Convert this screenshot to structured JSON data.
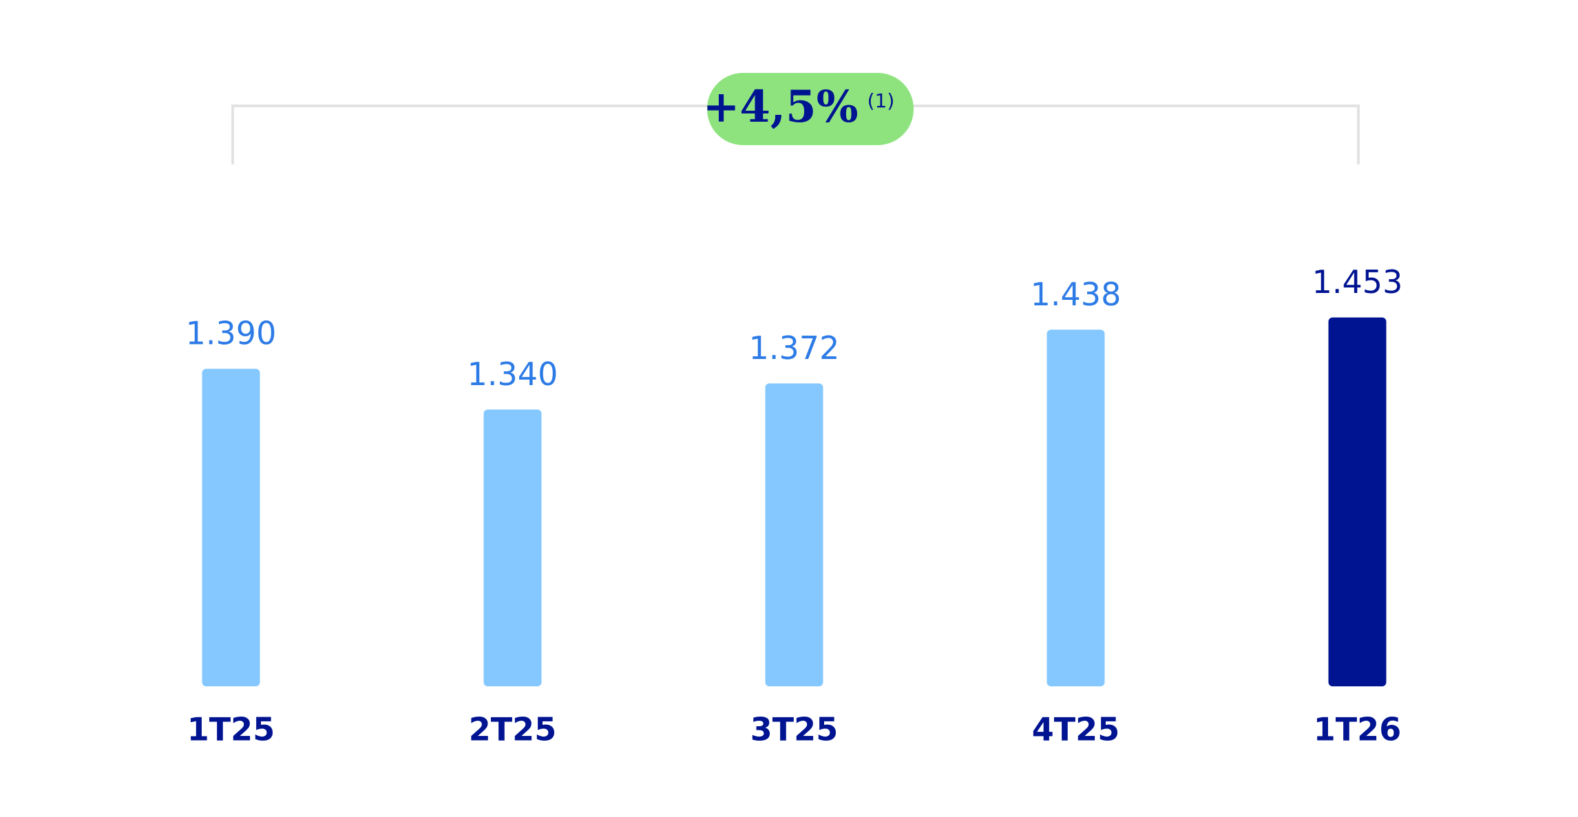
{
  "chart_data": {
    "type": "bar",
    "categories": [
      "1T25",
      "2T25",
      "3T25",
      "4T25",
      "1T26"
    ],
    "values": [
      1390,
      1340,
      1372,
      1438,
      1453
    ],
    "value_labels": [
      "1.390",
      "1.340",
      "1.372",
      "1.438",
      "1.453"
    ],
    "colors": [
      "#85c8ff",
      "#85c8ff",
      "#85c8ff",
      "#85c8ff",
      "#001391"
    ],
    "label_colors": [
      "#2d7be6",
      "#2d7be6",
      "#2d7be6",
      "#2d7be6",
      "#001391"
    ],
    "ylim": [
      1000,
      1500
    ],
    "annotation": {
      "text": "+4,5%",
      "note": "(1)"
    }
  }
}
